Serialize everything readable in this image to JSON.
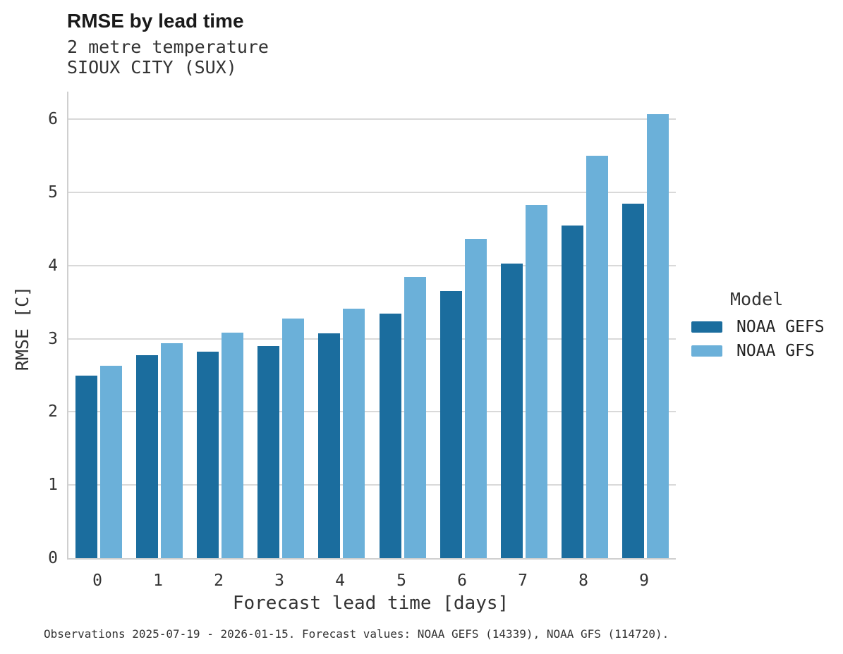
{
  "header": {
    "title": "RMSE by lead time",
    "subtitle_variable": "2 metre temperature",
    "subtitle_station": "SIOUX CITY (SUX)"
  },
  "caption": "Observations 2025-07-19 - 2026-01-15. Forecast values: NOAA GEFS (14339), NOAA GFS (114720).",
  "legend": {
    "title": "Model",
    "items": [
      {
        "label": "NOAA GEFS",
        "color": "#1b6d9e"
      },
      {
        "label": "NOAA GFS",
        "color": "#6bb0d9"
      }
    ]
  },
  "colors": {
    "gefs_bar": "#1b6d9e",
    "gfs_bar": "#6bb0d9",
    "gridline": "#d9d9d9",
    "axis_spine": "#cfcfcf",
    "text": "#333333"
  },
  "chart_data": {
    "type": "bar",
    "title": "RMSE by lead time",
    "subtitle": [
      "2 metre temperature",
      "SIOUX CITY (SUX)"
    ],
    "xlabel": "Forecast lead time [days]",
    "ylabel": "RMSE [C]",
    "categories": [
      "0",
      "1",
      "2",
      "3",
      "4",
      "5",
      "6",
      "7",
      "8",
      "9"
    ],
    "series": [
      {
        "name": "NOAA GEFS",
        "color": "#1b6d9e",
        "values": [
          2.5,
          2.78,
          2.82,
          2.9,
          3.07,
          3.34,
          3.65,
          4.03,
          4.55,
          4.85
        ]
      },
      {
        "name": "NOAA GFS",
        "color": "#6bb0d9",
        "values": [
          2.63,
          2.94,
          3.08,
          3.28,
          3.41,
          3.85,
          4.37,
          4.83,
          5.5,
          6.07
        ]
      }
    ],
    "ylim": [
      0,
      6.38
    ],
    "yticks": [
      0,
      1,
      2,
      3,
      4,
      5,
      6
    ],
    "grid": true,
    "legend_title": "Model",
    "legend_position": "right"
  }
}
